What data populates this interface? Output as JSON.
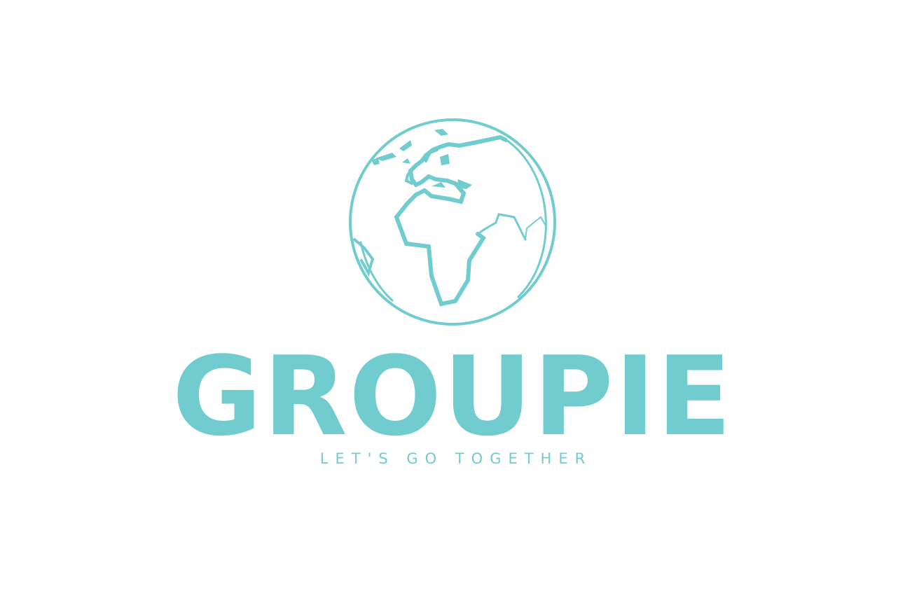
{
  "logo": {
    "name": "GROUPIE",
    "tagline": "LET'S GO TOGETHER",
    "icon": "globe-icon",
    "color": "#71cccf",
    "background": "#ffffff"
  }
}
